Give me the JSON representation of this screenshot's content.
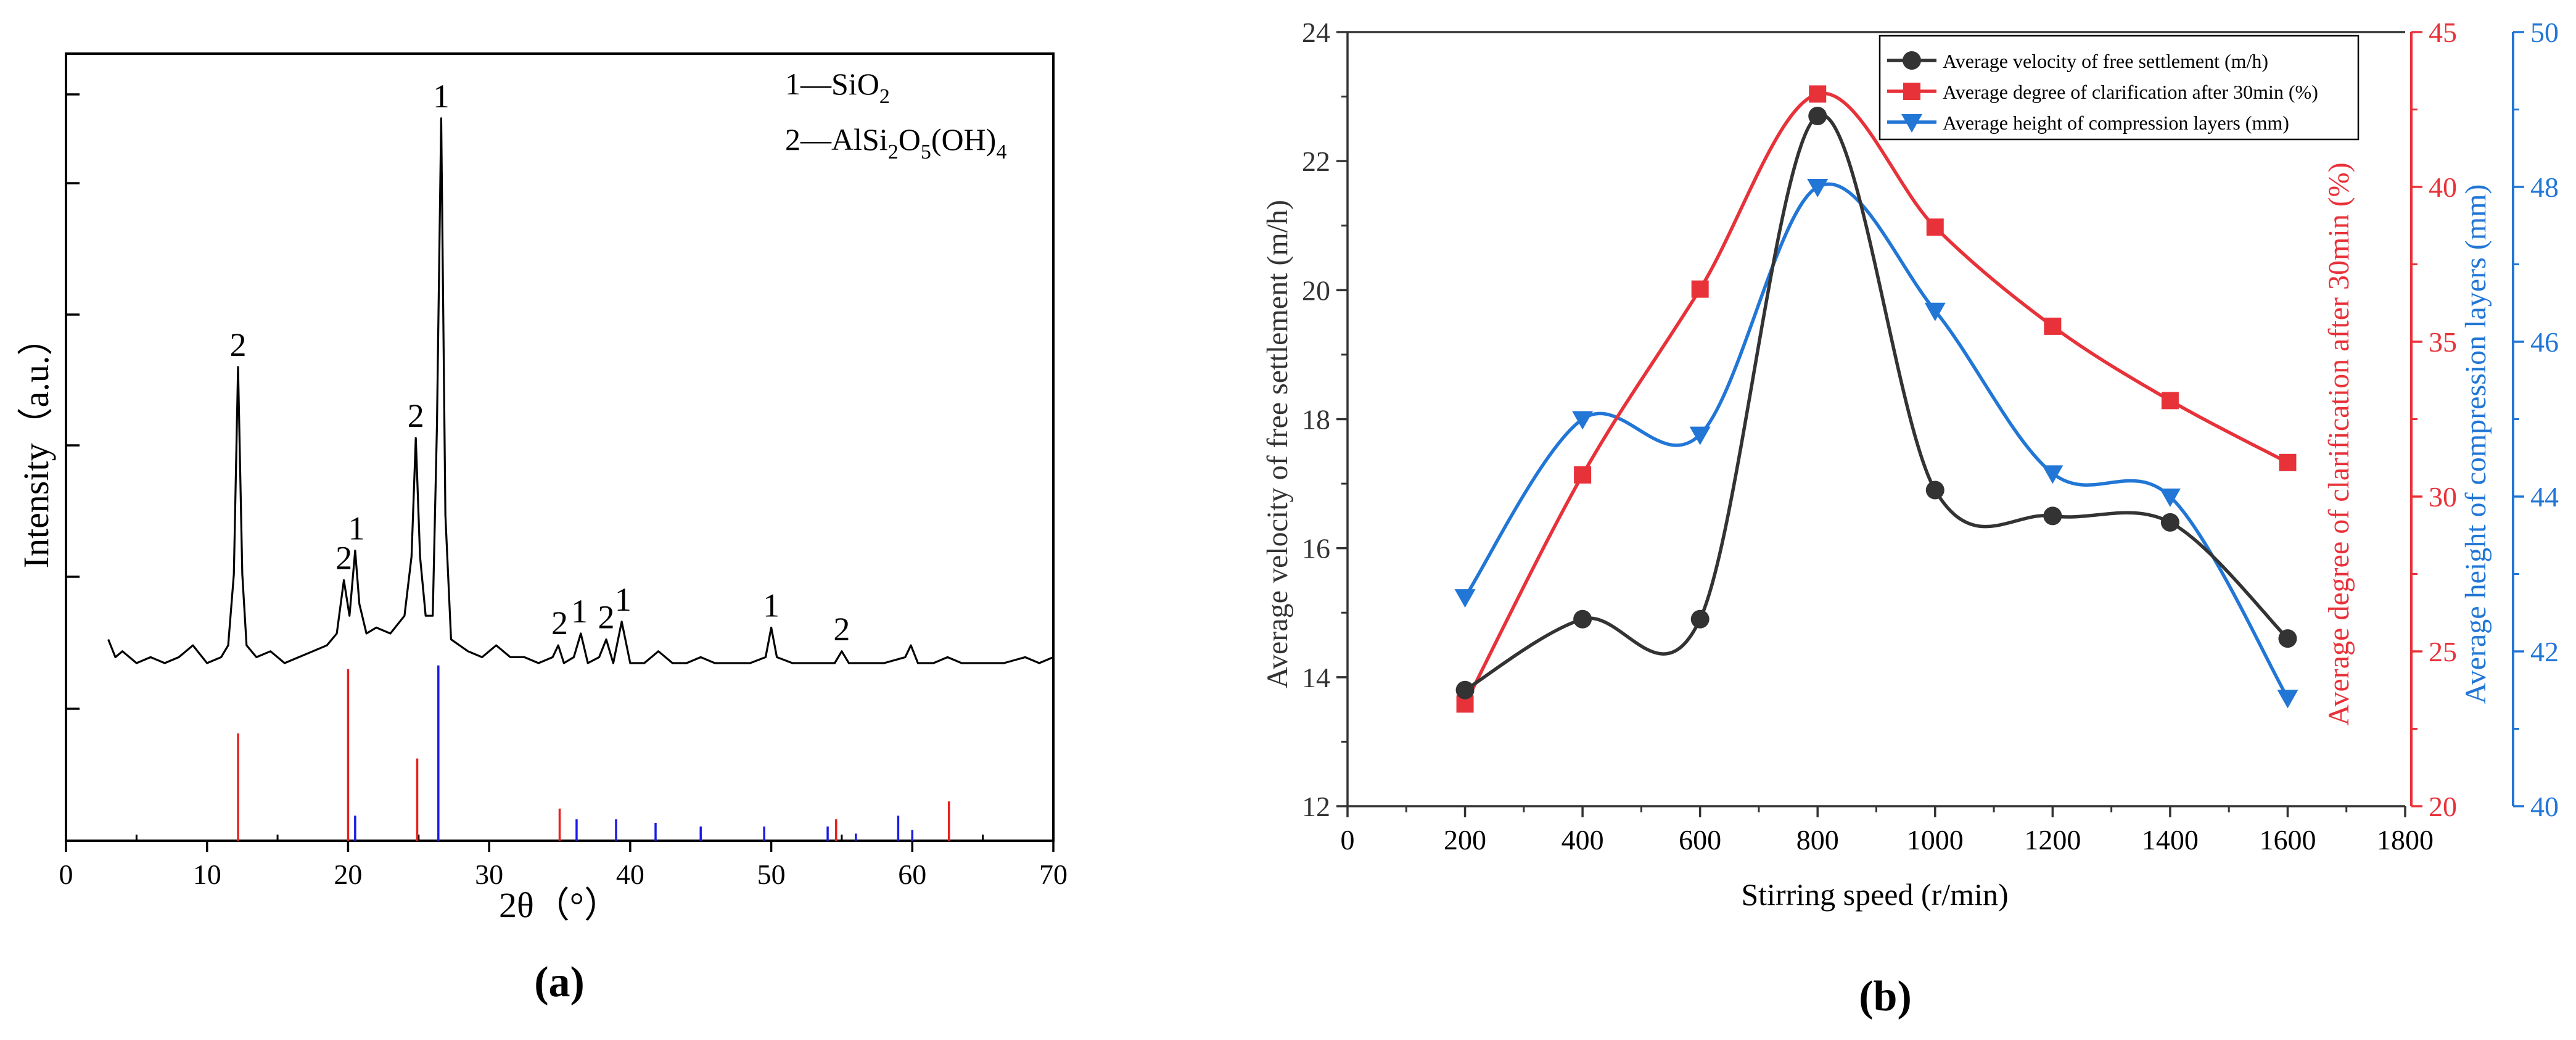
{
  "chart_data": [
    {
      "panel": "(a)",
      "type": "line",
      "xlabel": "2θ（°）",
      "ylabel": "Intensity（a.u.）",
      "xlim": [
        0,
        70
      ],
      "xticks": [
        0,
        10,
        20,
        30,
        40,
        50,
        60,
        70
      ],
      "legend": [
        "1—SiO2",
        "2—AlSi2O5(OH)4"
      ],
      "legend_placement": "top-right",
      "pattern": {
        "baseline": 0.3,
        "points": [
          [
            3.0,
            0.34
          ],
          [
            3.5,
            0.31
          ],
          [
            4.0,
            0.32
          ],
          [
            5.0,
            0.3
          ],
          [
            6.0,
            0.31
          ],
          [
            7.0,
            0.3
          ],
          [
            8.0,
            0.31
          ],
          [
            9.0,
            0.33
          ],
          [
            10.0,
            0.3
          ],
          [
            11.0,
            0.31
          ],
          [
            11.5,
            0.33
          ],
          [
            11.9,
            0.45
          ],
          [
            12.2,
            0.8
          ],
          [
            12.5,
            0.45
          ],
          [
            12.8,
            0.33
          ],
          [
            13.5,
            0.31
          ],
          [
            14.5,
            0.32
          ],
          [
            15.5,
            0.3
          ],
          [
            16.5,
            0.31
          ],
          [
            17.5,
            0.32
          ],
          [
            18.5,
            0.33
          ],
          [
            19.2,
            0.35
          ],
          [
            19.7,
            0.44
          ],
          [
            20.1,
            0.38
          ],
          [
            20.5,
            0.49
          ],
          [
            20.8,
            0.4
          ],
          [
            21.3,
            0.35
          ],
          [
            22.0,
            0.36
          ],
          [
            23.0,
            0.35
          ],
          [
            24.0,
            0.38
          ],
          [
            24.5,
            0.48
          ],
          [
            24.8,
            0.68
          ],
          [
            25.1,
            0.48
          ],
          [
            25.5,
            0.38
          ],
          [
            26.0,
            0.38
          ],
          [
            26.3,
            0.7
          ],
          [
            26.6,
            1.22
          ],
          [
            26.9,
            0.55
          ],
          [
            27.3,
            0.34
          ],
          [
            28.5,
            0.32
          ],
          [
            29.5,
            0.31
          ],
          [
            30.5,
            0.33
          ],
          [
            31.5,
            0.31
          ],
          [
            32.5,
            0.31
          ],
          [
            33.5,
            0.3
          ],
          [
            34.5,
            0.31
          ],
          [
            34.9,
            0.33
          ],
          [
            35.3,
            0.3
          ],
          [
            36.0,
            0.31
          ],
          [
            36.5,
            0.35
          ],
          [
            37.0,
            0.3
          ],
          [
            37.8,
            0.31
          ],
          [
            38.3,
            0.34
          ],
          [
            38.8,
            0.3
          ],
          [
            39.4,
            0.37
          ],
          [
            40.0,
            0.3
          ],
          [
            41.0,
            0.3
          ],
          [
            42.0,
            0.32
          ],
          [
            43.0,
            0.3
          ],
          [
            44.0,
            0.3
          ],
          [
            45.0,
            0.31
          ],
          [
            46.0,
            0.3
          ],
          [
            47.0,
            0.3
          ],
          [
            48.5,
            0.3
          ],
          [
            49.6,
            0.31
          ],
          [
            50.0,
            0.36
          ],
          [
            50.4,
            0.31
          ],
          [
            51.5,
            0.3
          ],
          [
            52.5,
            0.3
          ],
          [
            53.5,
            0.3
          ],
          [
            54.5,
            0.3
          ],
          [
            55.0,
            0.32
          ],
          [
            55.5,
            0.3
          ],
          [
            56.5,
            0.3
          ],
          [
            58.0,
            0.3
          ],
          [
            59.5,
            0.31
          ],
          [
            59.9,
            0.33
          ],
          [
            60.4,
            0.3
          ],
          [
            61.5,
            0.3
          ],
          [
            62.5,
            0.31
          ],
          [
            63.5,
            0.3
          ],
          [
            65.0,
            0.3
          ],
          [
            66.5,
            0.3
          ],
          [
            68.0,
            0.31
          ],
          [
            69.0,
            0.3
          ],
          [
            70.0,
            0.31
          ]
        ]
      },
      "peak_labels": [
        {
          "x": 12.2,
          "y": 0.8,
          "text": "2"
        },
        {
          "x": 19.7,
          "y": 0.44,
          "text": "2"
        },
        {
          "x": 20.6,
          "y": 0.49,
          "text": "1"
        },
        {
          "x": 24.8,
          "y": 0.68,
          "text": "2"
        },
        {
          "x": 26.6,
          "y": 1.22,
          "text": "1"
        },
        {
          "x": 35.0,
          "y": 0.33,
          "text": "2"
        },
        {
          "x": 36.4,
          "y": 0.35,
          "text": "1"
        },
        {
          "x": 38.3,
          "y": 0.34,
          "text": "2"
        },
        {
          "x": 39.5,
          "y": 0.37,
          "text": "1"
        },
        {
          "x": 50.0,
          "y": 0.36,
          "text": "1"
        },
        {
          "x": 55.0,
          "y": 0.32,
          "text": "2"
        }
      ],
      "reference_sticks": {
        "red": [
          {
            "x": 12.2,
            "h": 0.3
          },
          {
            "x": 20.0,
            "h": 0.48
          },
          {
            "x": 24.9,
            "h": 0.23
          },
          {
            "x": 35.0,
            "h": 0.09
          },
          {
            "x": 54.6,
            "h": 0.06
          },
          {
            "x": 62.6,
            "h": 0.11
          }
        ],
        "blue": [
          {
            "x": 20.5,
            "h": 0.07
          },
          {
            "x": 26.4,
            "h": 0.49
          },
          {
            "x": 36.2,
            "h": 0.06
          },
          {
            "x": 39.0,
            "h": 0.06
          },
          {
            "x": 41.8,
            "h": 0.05
          },
          {
            "x": 45.0,
            "h": 0.04
          },
          {
            "x": 49.5,
            "h": 0.04
          },
          {
            "x": 54.0,
            "h": 0.04
          },
          {
            "x": 56.0,
            "h": 0.02
          },
          {
            "x": 59.0,
            "h": 0.07
          },
          {
            "x": 60.0,
            "h": 0.03
          }
        ],
        "colors": {
          "red": "#e8201f",
          "blue": "#1a1ae8"
        }
      }
    },
    {
      "panel": "(b)",
      "type": "line",
      "xlabel": "Stirring speed (r/min)",
      "xlim": [
        0,
        1800
      ],
      "xticks": [
        0,
        200,
        400,
        600,
        800,
        1000,
        1200,
        1400,
        1600,
        1800
      ],
      "legend_placement": "top-right",
      "axes": {
        "left": {
          "label": "Average velocity of free settlement (m/h)",
          "ylim": [
            12,
            24
          ],
          "ticks": [
            12,
            14,
            16,
            18,
            20,
            22,
            24
          ],
          "color": "#333333"
        },
        "right1": {
          "label": "Average degree of clarification after 30min (%)",
          "ylim": [
            20,
            45
          ],
          "ticks": [
            20,
            25,
            30,
            35,
            40,
            45
          ],
          "color": "#e8323a"
        },
        "right2": {
          "label": "Average height of compression layers (mm)",
          "ylim": [
            40,
            50
          ],
          "ticks": [
            40,
            42,
            44,
            46,
            48,
            50
          ],
          "color": "#2176d6"
        }
      },
      "x": [
        200,
        400,
        600,
        800,
        1000,
        1200,
        1400,
        1600
      ],
      "series": [
        {
          "name": "Average velocity of free settlement (m/h)",
          "axis": "left",
          "color": "#333333",
          "marker": "circle",
          "values": [
            13.8,
            14.9,
            14.9,
            22.7,
            16.9,
            16.5,
            16.4,
            14.6
          ]
        },
        {
          "name": "Average degree of clarification after 30min (%)",
          "axis": "right1",
          "color": "#e8323a",
          "marker": "square",
          "values": [
            23.3,
            30.7,
            36.7,
            43.0,
            38.7,
            35.5,
            33.1,
            31.1
          ]
        },
        {
          "name": "Average height of compression layers (mm)",
          "axis": "right2",
          "color": "#2176d6",
          "marker": "triangle-down",
          "values": [
            42.7,
            45.0,
            44.8,
            48.0,
            46.4,
            44.3,
            44.0,
            41.4
          ]
        }
      ]
    }
  ],
  "captions": [
    "(a)",
    "(b)"
  ]
}
